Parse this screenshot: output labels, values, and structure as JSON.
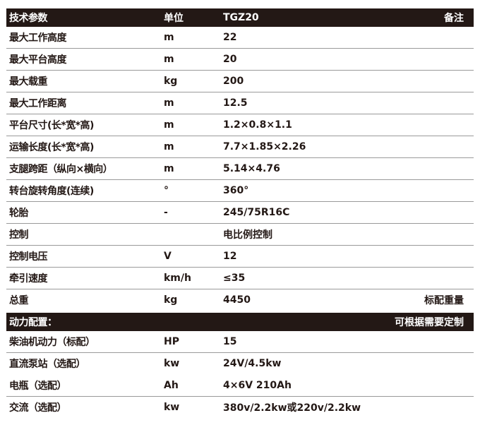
{
  "header": {
    "param": "技术参数",
    "unit": "单位",
    "model": "TGZ20",
    "note": "备注"
  },
  "rows": [
    {
      "param": "最大工作高度",
      "unit": "m",
      "value": "22",
      "note": ""
    },
    {
      "param": "最大平台高度",
      "unit": "m",
      "value": "20",
      "note": ""
    },
    {
      "param": "最大载重",
      "unit": "kg",
      "value": "200",
      "note": ""
    },
    {
      "param": "最大工作距离",
      "unit": "m",
      "value": "12.5",
      "note": ""
    },
    {
      "param": "平台尺寸(长*宽*高)",
      "unit": "m",
      "value": "1.2×0.8×1.1",
      "note": ""
    },
    {
      "param": "运输长度(长*宽*高)",
      "unit": "m",
      "value": "7.7×1.85×2.26",
      "note": ""
    },
    {
      "param": "支腿跨距（纵向×横向）",
      "unit": "m",
      "value": "5.14×4.76",
      "note": ""
    },
    {
      "param": "转台旋转角度(连续)",
      "unit": "°",
      "value": "360°",
      "note": ""
    },
    {
      "param": "轮胎",
      "unit": "-",
      "value": "245/75R16C",
      "note": ""
    },
    {
      "param": "控制",
      "unit": "",
      "value": "电比例控制",
      "note": ""
    },
    {
      "param": "控制电压",
      "unit": "V",
      "value": "12",
      "note": ""
    },
    {
      "param": "牵引速度",
      "unit": "km/h",
      "value": "≤35",
      "note": ""
    },
    {
      "param": "总重",
      "unit": "kg",
      "value": "4450",
      "note": "标配重量"
    }
  ],
  "power_header": {
    "title": "动力配置：",
    "note": "可根据需要定制"
  },
  "power_rows": [
    {
      "param": "柴油机动力（标配）",
      "unit": "HP",
      "value": "15"
    },
    {
      "param": "直流泵站（选配）",
      "unit": "kw",
      "value": "24V/4.5kw"
    },
    {
      "param": "电瓶（选配）",
      "unit": "Ah",
      "value": "4×6V 210Ah"
    },
    {
      "param": "交流（选配）",
      "unit": "kw",
      "value": "380v/2.2kw或220v/2.2kw"
    }
  ],
  "colors": {
    "header_bg": "#231815",
    "header_text": "#ffffff",
    "divider": "#9a9a9a"
  }
}
